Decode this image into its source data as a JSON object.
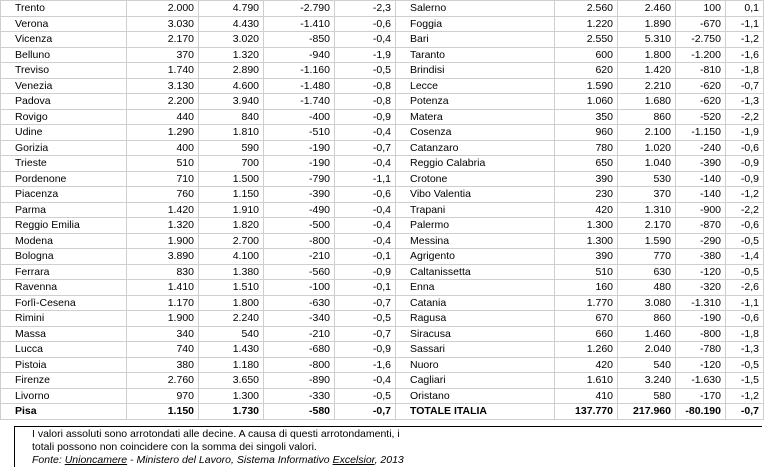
{
  "left_rows": [
    [
      "Trento",
      "2.000",
      "4.790",
      "-2.790",
      "-2,3"
    ],
    [
      "Verona",
      "3.030",
      "4.430",
      "-1.410",
      "-0,6"
    ],
    [
      "Vicenza",
      "2.170",
      "3.020",
      "-850",
      "-0,4"
    ],
    [
      "Belluno",
      "370",
      "1.320",
      "-940",
      "-1,9"
    ],
    [
      "Treviso",
      "1.740",
      "2.890",
      "-1.160",
      "-0,5"
    ],
    [
      "Venezia",
      "3.130",
      "4.600",
      "-1.480",
      "-0,8"
    ],
    [
      "Padova",
      "2.200",
      "3.940",
      "-1.740",
      "-0,8"
    ],
    [
      "Rovigo",
      "440",
      "840",
      "-400",
      "-0,9"
    ],
    [
      "Udine",
      "1.290",
      "1.810",
      "-510",
      "-0,4"
    ],
    [
      "Gorizia",
      "400",
      "590",
      "-190",
      "-0,7"
    ],
    [
      "Trieste",
      "510",
      "700",
      "-190",
      "-0,4"
    ],
    [
      "Pordenone",
      "710",
      "1.500",
      "-790",
      "-1,1"
    ],
    [
      "Piacenza",
      "760",
      "1.150",
      "-390",
      "-0,6"
    ],
    [
      "Parma",
      "1.420",
      "1.910",
      "-490",
      "-0,4"
    ],
    [
      "Reggio Emilia",
      "1.320",
      "1.820",
      "-500",
      "-0,4"
    ],
    [
      "Modena",
      "1.900",
      "2.700",
      "-800",
      "-0,4"
    ],
    [
      "Bologna",
      "3.890",
      "4.100",
      "-210",
      "-0,1"
    ],
    [
      "Ferrara",
      "830",
      "1.380",
      "-560",
      "-0,9"
    ],
    [
      "Ravenna",
      "1.410",
      "1.510",
      "-100",
      "-0,1"
    ],
    [
      "Forlì-Cesena",
      "1.170",
      "1.800",
      "-630",
      "-0,7"
    ],
    [
      "Rimini",
      "1.900",
      "2.240",
      "-340",
      "-0,5"
    ],
    [
      "Massa",
      "340",
      "540",
      "-210",
      "-0,7"
    ],
    [
      "Lucca",
      "740",
      "1.430",
      "-680",
      "-0,9"
    ],
    [
      "Pistoia",
      "380",
      "1.180",
      "-800",
      "-1,6"
    ],
    [
      "Firenze",
      "2.760",
      "3.650",
      "-890",
      "-0,4"
    ],
    [
      "Livorno",
      "970",
      "1.300",
      "-330",
      "-0,5"
    ],
    [
      "Pisa",
      "1.150",
      "1.730",
      "-580",
      "-0,7"
    ]
  ],
  "right_rows": [
    [
      "Salerno",
      "2.560",
      "2.460",
      "100",
      "0,1"
    ],
    [
      "Foggia",
      "1.220",
      "1.890",
      "-670",
      "-1,1"
    ],
    [
      "Bari",
      "2.550",
      "5.310",
      "-2.750",
      "-1,2"
    ],
    [
      "Taranto",
      "600",
      "1.800",
      "-1.200",
      "-1,6"
    ],
    [
      "Brindisi",
      "620",
      "1.420",
      "-810",
      "-1,8"
    ],
    [
      "Lecce",
      "1.590",
      "2.210",
      "-620",
      "-0,7"
    ],
    [
      "Potenza",
      "1.060",
      "1.680",
      "-620",
      "-1,3"
    ],
    [
      "Matera",
      "350",
      "860",
      "-520",
      "-2,2"
    ],
    [
      "Cosenza",
      "960",
      "2.100",
      "-1.150",
      "-1,9"
    ],
    [
      "Catanzaro",
      "780",
      "1.020",
      "-240",
      "-0,6"
    ],
    [
      "Reggio Calabria",
      "650",
      "1.040",
      "-390",
      "-0,9"
    ],
    [
      "Crotone",
      "390",
      "530",
      "-140",
      "-0,9"
    ],
    [
      "Vibo Valentia",
      "230",
      "370",
      "-140",
      "-1,2"
    ],
    [
      "Trapani",
      "420",
      "1.310",
      "-900",
      "-2,2"
    ],
    [
      "Palermo",
      "1.300",
      "2.170",
      "-870",
      "-0,6"
    ],
    [
      "Messina",
      "1.300",
      "1.590",
      "-290",
      "-0,5"
    ],
    [
      "Agrigento",
      "390",
      "770",
      "-380",
      "-1,4"
    ],
    [
      "Caltanissetta",
      "510",
      "630",
      "-120",
      "-0,5"
    ],
    [
      "Enna",
      "160",
      "480",
      "-320",
      "-2,6"
    ],
    [
      "Catania",
      "1.770",
      "3.080",
      "-1.310",
      "-1,1"
    ],
    [
      "Ragusa",
      "670",
      "860",
      "-190",
      "-0,6"
    ],
    [
      "Siracusa",
      "660",
      "1.460",
      "-800",
      "-1,8"
    ],
    [
      "Sassari",
      "1.260",
      "2.040",
      "-780",
      "-1,3"
    ],
    [
      "Nuoro",
      "420",
      "540",
      "-120",
      "-0,5"
    ],
    [
      "Cagliari",
      "1.610",
      "3.240",
      "-1.630",
      "-1,5"
    ],
    [
      "Oristano",
      "410",
      "580",
      "-170",
      "-1,2"
    ],
    [
      "TOTALE ITALIA",
      "137.770",
      "217.960",
      "-80.190",
      "-0,7"
    ]
  ],
  "notes": {
    "line1": "I valori assoluti sono arrotondati alle decine. A causa di questi arrotondamenti, i",
    "line2": "totali possono non coincidere con la somma dei singoli valori.",
    "source_prefix": "Fonte: ",
    "source_org": "Unioncamere",
    "source_mid": " - Ministero del Lavoro, Sistema Informativo ",
    "source_sys": "Excelsior",
    "source_year": ", 2013"
  }
}
